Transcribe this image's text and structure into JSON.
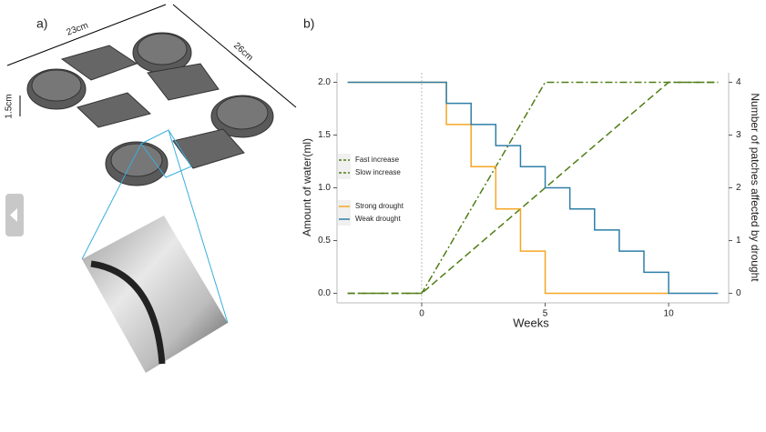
{
  "figure_a": {
    "label": "a)",
    "width_label": "23cm",
    "depth_label": "26cm",
    "height_label": "1.5cm"
  },
  "chart_data": {
    "type": "line",
    "panel_label": "b)",
    "x_label": "Weeks",
    "y_label": "Amount of water(ml)",
    "y2_label": "Number of patches affected by drought",
    "xlim": [
      -3.43,
      12.43
    ],
    "xticks": [
      0,
      5,
      10
    ],
    "ylim": [
      -0.09,
      2.09
    ],
    "yticks": [
      {
        "value": 0,
        "label": "0.0"
      },
      {
        "value": 0.5,
        "label": "0.5"
      },
      {
        "value": 1,
        "label": "1.0"
      },
      {
        "value": 1.5,
        "label": "1.5"
      },
      {
        "value": 2,
        "label": "2.0"
      }
    ],
    "y2lim": [
      -0.18,
      4.18
    ],
    "y2ticks": [
      0,
      1,
      2,
      3,
      4
    ],
    "vline": 0,
    "series": [
      {
        "name": "Fast increase",
        "color": "#4f7d14",
        "linestyle": "dashdot",
        "axis": "y2",
        "x": [
          -3,
          0,
          5,
          12
        ],
        "values": [
          0,
          0,
          4,
          4
        ]
      },
      {
        "name": "Slow increase",
        "color": "#4f7d14",
        "linestyle": "dashed",
        "axis": "y2",
        "x": [
          -3,
          0,
          10,
          12
        ],
        "values": [
          0,
          0,
          4,
          4
        ]
      },
      {
        "name": "Strong drought",
        "color": "#f5a623",
        "linestyle": "solid",
        "x": [
          -3,
          1,
          1,
          2,
          2,
          3,
          3,
          4,
          4,
          5,
          5,
          10
        ],
        "values": [
          2,
          2,
          1.6,
          1.6,
          1.2,
          1.2,
          0.8,
          0.8,
          0.4,
          0.4,
          0,
          0
        ]
      },
      {
        "name": "Weak drought",
        "color": "#2e7fa8",
        "linestyle": "solid",
        "x": [
          -3,
          1,
          1,
          2,
          2,
          3,
          3,
          4,
          4,
          5,
          5,
          6,
          6,
          7,
          7,
          8,
          8,
          9,
          9,
          10,
          10,
          12
        ],
        "values": [
          2,
          2,
          1.8,
          1.8,
          1.6,
          1.6,
          1.4,
          1.4,
          1.2,
          1.2,
          1,
          1,
          0.8,
          0.8,
          0.6,
          0.6,
          0.4,
          0.4,
          0.2,
          0.2,
          0,
          0
        ]
      }
    ]
  }
}
